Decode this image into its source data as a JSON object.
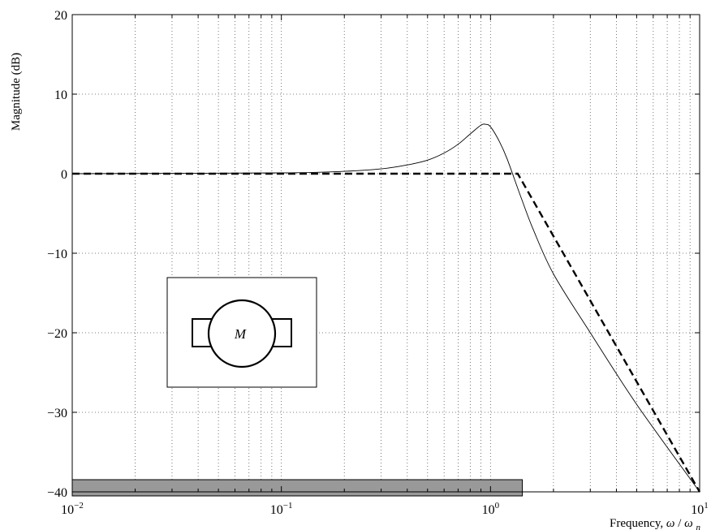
{
  "chart_data": {
    "type": "line",
    "title": "",
    "xlabel_main": "Frequency, ",
    "xlabel_omega": "ω",
    "xlabel_slash": "/",
    "xlabel_omega_n": "ω",
    "xlabel_subscript": "n",
    "ylabel": "Magnitude (dB)",
    "x_scale": "log",
    "xlim": [
      0.01,
      10
    ],
    "ylim": [
      -40,
      20
    ],
    "grid": true,
    "x_tick_labels": [
      {
        "value": 0.01,
        "base": "10",
        "exp": "−2"
      },
      {
        "value": 0.1,
        "base": "10",
        "exp": "−1"
      },
      {
        "value": 1,
        "base": "10",
        "exp": "0"
      },
      {
        "value": 10,
        "base": "10",
        "exp": "1"
      }
    ],
    "y_ticks": [
      20,
      10,
      0,
      -10,
      -20,
      -30,
      -40
    ],
    "y_tick_labels": [
      "20",
      "10",
      "0",
      "−10",
      "−20",
      "−30",
      "−40"
    ],
    "series": [
      {
        "style": "thin-solid",
        "color": "#000000",
        "x": [
          0.01,
          0.1,
          0.2,
          0.3,
          0.4,
          0.5,
          0.6,
          0.7,
          0.8,
          0.9,
          0.95,
          1.0,
          1.1,
          1.2,
          1.4,
          1.6,
          2.0,
          3.0,
          5.0,
          10.0
        ],
        "y": [
          0.0,
          0.1,
          0.3,
          0.6,
          1.1,
          1.7,
          2.6,
          3.7,
          5.0,
          6.1,
          6.2,
          5.9,
          4.1,
          1.9,
          -3.0,
          -7.0,
          -12.6,
          -20.0,
          -29.0,
          -40.0
        ]
      },
      {
        "style": "thick-dashed",
        "color": "#000000",
        "x": [
          0.01,
          1.35,
          10.0
        ],
        "y": [
          0.0,
          0.0,
          -40.0
        ]
      }
    ],
    "annotations": {
      "motor_symbol": {
        "label": "M"
      },
      "bottom_bar": {
        "x_start": 0.01,
        "x_end": 1.42,
        "fill_color": "#999999",
        "border_color": "#000000"
      }
    }
  }
}
